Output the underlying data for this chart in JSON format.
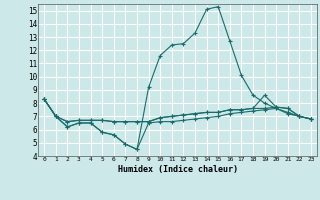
{
  "xlabel": "Humidex (Indice chaleur)",
  "bg_color": "#cce8e8",
  "grid_color": "#ffffff",
  "line_color": "#1a6b6b",
  "xlim": [
    -0.5,
    23.5
  ],
  "ylim": [
    4,
    15.5
  ],
  "xticks": [
    0,
    1,
    2,
    3,
    4,
    5,
    6,
    7,
    8,
    9,
    10,
    11,
    12,
    13,
    14,
    15,
    16,
    17,
    18,
    19,
    20,
    21,
    22,
    23
  ],
  "yticks": [
    4,
    5,
    6,
    7,
    8,
    9,
    10,
    11,
    12,
    13,
    14,
    15
  ],
  "series": [
    [
      8.3,
      7.0,
      6.2,
      6.5,
      6.5,
      5.8,
      5.6,
      4.9,
      4.5,
      6.5,
      6.6,
      6.6,
      6.7,
      6.8,
      6.9,
      7.0,
      7.2,
      7.3,
      7.4,
      7.5,
      7.6,
      7.2,
      7.0,
      6.8
    ],
    [
      8.3,
      7.0,
      6.2,
      6.5,
      6.5,
      5.8,
      5.6,
      4.9,
      4.5,
      9.2,
      11.6,
      12.4,
      12.5,
      13.3,
      15.1,
      15.3,
      12.7,
      10.1,
      8.6,
      8.0,
      7.6,
      7.3,
      7.0,
      6.8
    ],
    [
      8.3,
      7.0,
      6.6,
      6.7,
      6.7,
      6.7,
      6.6,
      6.6,
      6.6,
      6.6,
      6.9,
      7.0,
      7.1,
      7.2,
      7.3,
      7.3,
      7.5,
      7.5,
      7.6,
      8.6,
      7.7,
      7.6,
      7.0,
      6.8
    ],
    [
      8.3,
      7.0,
      6.6,
      6.7,
      6.7,
      6.7,
      6.6,
      6.6,
      6.6,
      6.6,
      6.9,
      7.0,
      7.1,
      7.2,
      7.3,
      7.3,
      7.5,
      7.5,
      7.6,
      7.6,
      7.7,
      7.6,
      7.0,
      6.8
    ]
  ]
}
